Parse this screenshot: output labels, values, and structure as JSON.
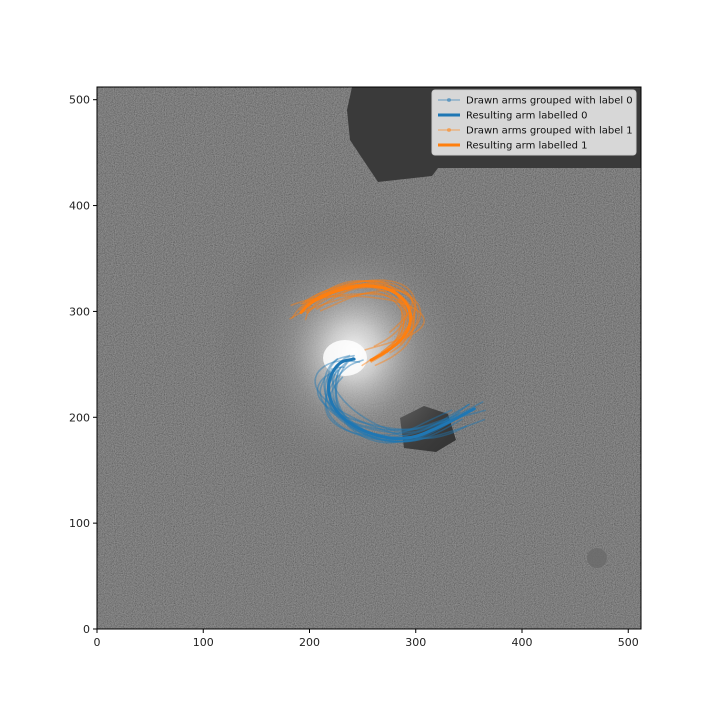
{
  "chart_data": {
    "type": "line",
    "background": "grayscale galaxy image",
    "xlim": [
      0,
      512
    ],
    "ylim": [
      0,
      512
    ],
    "xticks": [
      0,
      100,
      200,
      300,
      400,
      500
    ],
    "yticks": [
      0,
      100,
      200,
      300,
      400,
      500
    ],
    "grid": false,
    "legend_position": "top-right",
    "colors": {
      "label0": "#1f77b4",
      "label1": "#ff7f0e"
    },
    "legend": [
      {
        "label": "Drawn arms grouped with label 0",
        "style": "drawn",
        "color": "#1f77b4"
      },
      {
        "label": "Resulting arm labelled 0",
        "style": "result",
        "color": "#1f77b4"
      },
      {
        "label": "Drawn arms grouped with label 1",
        "style": "drawn",
        "color": "#ff7f0e"
      },
      {
        "label": "Resulting arm labelled 1",
        "style": "result",
        "color": "#ff7f0e"
      }
    ],
    "series": [
      {
        "name": "Resulting arm labelled 0",
        "color": "#1f77b4",
        "x": [
          242,
          230,
          222,
          218,
          220,
          228,
          242,
          260,
          280,
          300,
          320,
          340,
          355
        ],
        "y": [
          255,
          252,
          243,
          230,
          216,
          203,
          192,
          184,
          180,
          182,
          190,
          200,
          208
        ]
      },
      {
        "name": "Resulting arm labelled 1",
        "color": "#ff7f0e",
        "x": [
          258,
          272,
          285,
          293,
          295,
          290,
          280,
          266,
          250,
          232,
          215,
          200,
          192
        ],
        "y": [
          254,
          262,
          272,
          284,
          297,
          309,
          318,
          323,
          324,
          321,
          315,
          307,
          299
        ]
      }
    ]
  }
}
